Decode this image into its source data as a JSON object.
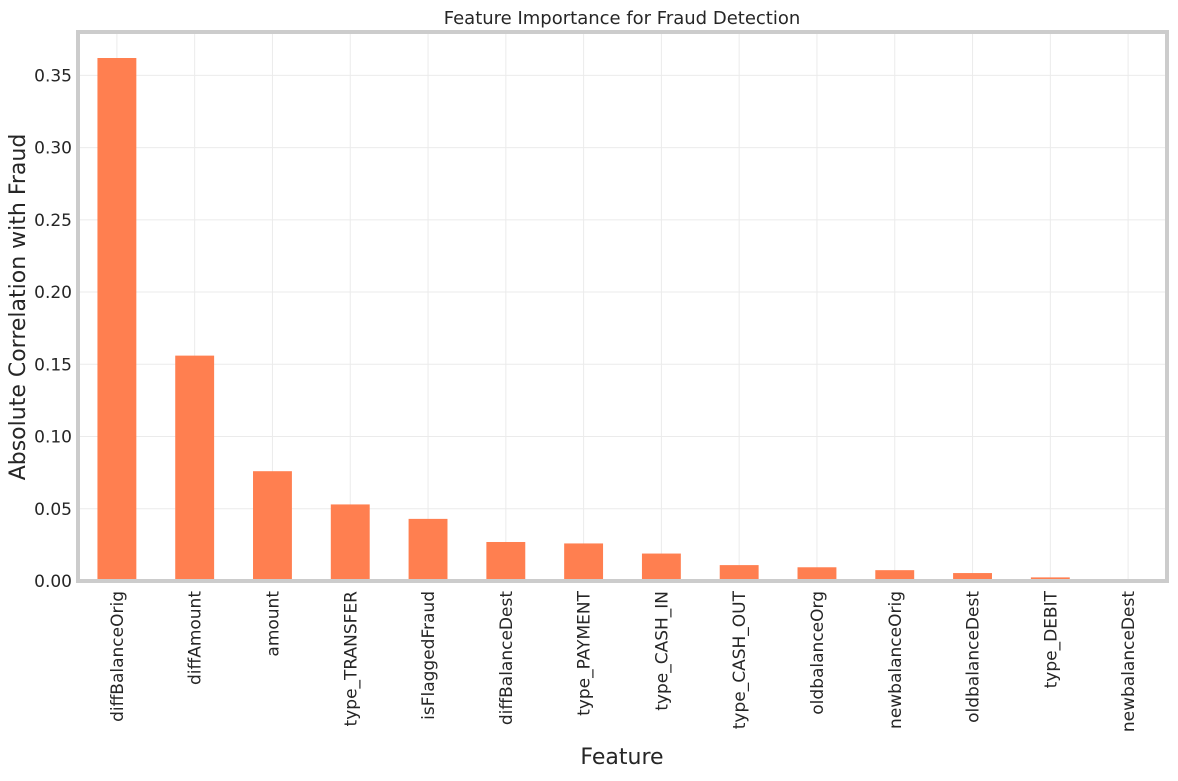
{
  "chart_data": {
    "type": "bar",
    "title": "Feature Importance for Fraud Detection",
    "xlabel": "Feature",
    "ylabel": "Absolute Correlation with Fraud",
    "categories": [
      "diffBalanceOrig",
      "diffAmount",
      "amount",
      "type_TRANSFER",
      "isFlaggedFraud",
      "diffBalanceDest",
      "type_PAYMENT",
      "type_CASH_IN",
      "type_CASH_OUT",
      "oldbalanceOrg",
      "newbalanceOrig",
      "oldbalanceDest",
      "type_DEBIT",
      "newbalanceDest"
    ],
    "values": [
      0.362,
      0.156,
      0.076,
      0.053,
      0.043,
      0.027,
      0.026,
      0.019,
      0.011,
      0.0095,
      0.0075,
      0.0055,
      0.0025,
      0.0008
    ],
    "ylim": [
      0,
      0.38
    ],
    "yticks": [
      "0.00",
      "0.05",
      "0.10",
      "0.15",
      "0.20",
      "0.25",
      "0.30",
      "0.35"
    ],
    "grid": true,
    "legend": "none",
    "bar_color": "#FF7F50",
    "frame_color": "#CCCCCC",
    "grid_color": "#EBEBEB"
  }
}
